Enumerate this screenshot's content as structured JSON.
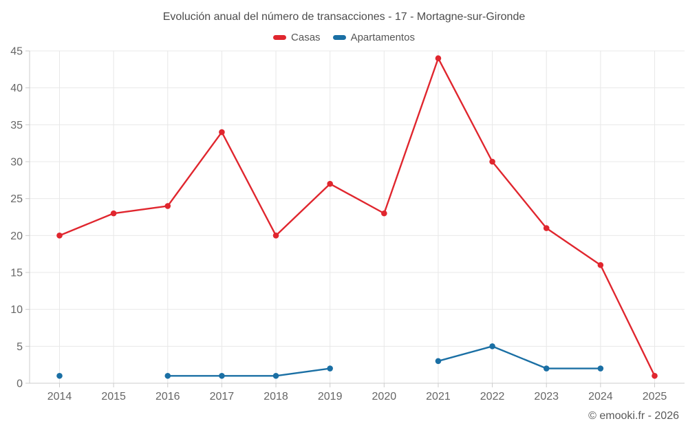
{
  "chart_data": {
    "type": "line",
    "title": "Evolución anual del número de transacciones - 17 - Mortagne-sur-Gironde",
    "categories": [
      "2014",
      "2015",
      "2016",
      "2017",
      "2018",
      "2019",
      "2020",
      "2021",
      "2022",
      "2023",
      "2024",
      "2025"
    ],
    "series": [
      {
        "name": "Casas",
        "color": "#e0262e",
        "values": [
          20,
          23,
          24,
          34,
          20,
          27,
          23,
          44,
          30,
          21,
          16,
          1
        ]
      },
      {
        "name": "Apartamentos",
        "color": "#1a6fa4",
        "values": [
          1,
          null,
          1,
          1,
          1,
          2,
          null,
          3,
          5,
          2,
          2,
          null
        ]
      }
    ],
    "xlabel": "",
    "ylabel": "",
    "ylim": [
      0,
      45
    ],
    "ytick_step": 5,
    "grid": true,
    "legend_position": "top"
  },
  "footer": {
    "copyright": "© emooki.fr - 2026"
  },
  "style": {
    "grid_color": "#e8e8e8",
    "axis_color": "#cccccc",
    "tick_label_color": "#666666"
  }
}
